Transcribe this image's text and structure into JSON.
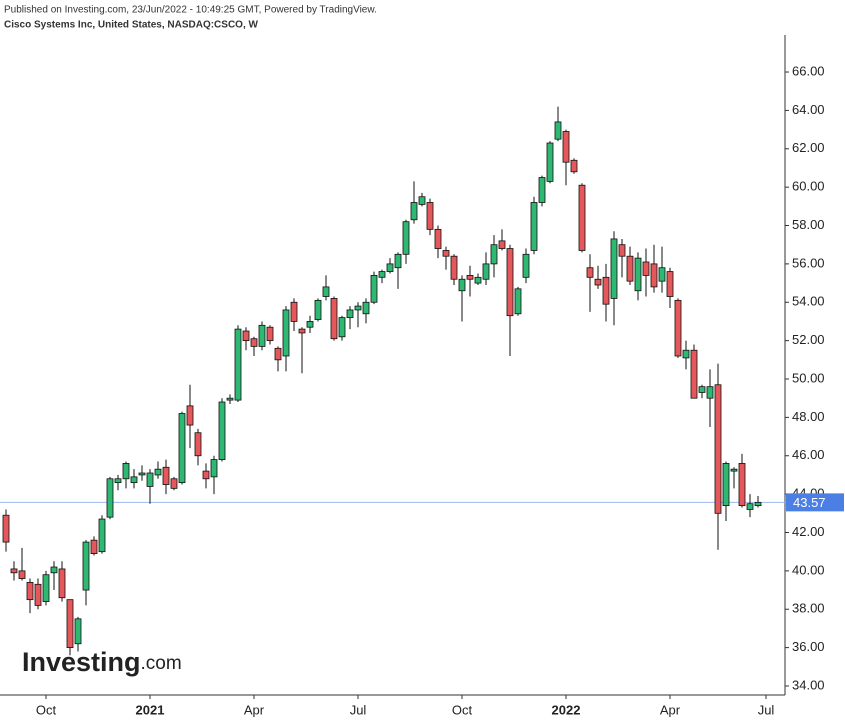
{
  "chart_data": {
    "type": "candlestick",
    "published": "Published on Investing.com, 23/Jun/2022 - 10:49:25 GMT, Powered by TradingView.",
    "title": "Cisco Systems Inc, United States, NASDAQ:CSCO, W",
    "logo_main": "Investing",
    "logo_suffix": ".com",
    "up_color": "#2fb872",
    "down_color": "#e4575a",
    "last_price": 43.57,
    "categories": [
      null,
      null,
      null,
      null,
      null,
      "Oct",
      null,
      null,
      null,
      null,
      null,
      null,
      null,
      null,
      null,
      null,
      null,
      null,
      "2021",
      null,
      null,
      null,
      null,
      null,
      null,
      null,
      null,
      null,
      null,
      null,
      null,
      "Apr",
      null,
      null,
      null,
      null,
      null,
      null,
      null,
      null,
      null,
      null,
      null,
      null,
      "Jul",
      null,
      null,
      null,
      null,
      null,
      null,
      null,
      null,
      null,
      null,
      null,
      null,
      "Oct",
      null,
      null,
      null,
      null,
      null,
      null,
      null,
      null,
      null,
      null,
      null,
      null,
      "2022",
      null,
      null,
      null,
      null,
      null,
      null,
      null,
      null,
      null,
      null,
      null,
      null,
      "Apr",
      null,
      null,
      null,
      null,
      null,
      null,
      null,
      null,
      null,
      null,
      null,
      "Jul"
    ],
    "open": [
      42.9,
      40.1,
      40.0,
      39.4,
      39.3,
      38.4,
      39.9,
      40.1,
      38.5,
      36.2,
      39.0,
      41.6,
      41.0,
      42.8,
      44.6,
      44.8,
      44.6,
      45.0,
      44.4,
      45.0,
      45.4,
      44.8,
      44.6,
      48.6,
      47.2,
      45.2,
      44.9,
      45.8,
      48.9,
      48.9,
      52.5,
      52.1,
      51.7,
      52.7,
      51.6,
      51.2,
      54.0,
      52.6,
      52.7,
      53.1,
      54.3,
      54.2,
      52.2,
      53.2,
      53.6,
      53.4,
      54.0,
      55.3,
      55.6,
      55.8,
      56.5,
      58.3,
      59.1,
      59.2,
      57.8,
      56.7,
      56.4,
      54.6,
      55.4,
      55.0,
      55.2,
      56.0,
      57.2,
      56.8,
      53.4,
      55.3,
      56.7,
      59.2,
      60.3,
      62.5,
      62.9,
      61.4,
      60.1,
      55.8,
      55.2,
      55.3,
      54.2,
      57.0,
      56.4,
      54.6,
      56.1,
      56.0,
      55.1,
      55.6,
      54.1,
      51.1,
      51.5,
      49.3,
      49.0,
      49.7,
      43.4,
      45.2,
      45.6,
      43.2,
      43.4,
      null
    ],
    "high": [
      43.2,
      40.5,
      41.2,
      39.6,
      39.6,
      40.0,
      40.5,
      40.5,
      38.5,
      37.6,
      41.6,
      41.8,
      42.9,
      44.9,
      45.0,
      45.7,
      45.3,
      45.5,
      45.3,
      45.7,
      45.8,
      44.9,
      48.3,
      49.7,
      47.4,
      45.6,
      46.0,
      49.0,
      49.2,
      52.8,
      52.7,
      52.2,
      53.0,
      52.8,
      51.7,
      53.8,
      54.2,
      52.7,
      53.3,
      54.2,
      55.4,
      54.3,
      53.3,
      53.8,
      54.0,
      54.2,
      55.6,
      55.7,
      56.3,
      56.6,
      58.3,
      60.3,
      59.7,
      59.4,
      58.0,
      56.9,
      56.5,
      55.4,
      55.9,
      55.5,
      56.6,
      57.5,
      57.8,
      57.0,
      54.8,
      56.8,
      59.5,
      60.6,
      62.4,
      64.2,
      63.0,
      61.5,
      60.2,
      56.5,
      55.9,
      56.0,
      57.7,
      57.3,
      56.9,
      56.6,
      56.8,
      57.0,
      56.9,
      55.8,
      54.2,
      52.0,
      51.8,
      49.7,
      50.5,
      50.8,
      45.7,
      45.4,
      46.1,
      44.0,
      43.9,
      null
    ],
    "low": [
      41.0,
      39.5,
      39.5,
      37.8,
      38.0,
      38.2,
      39.0,
      38.4,
      35.6,
      35.8,
      38.2,
      40.8,
      40.9,
      42.7,
      44.2,
      44.3,
      44.3,
      44.7,
      43.5,
      44.8,
      44.0,
      44.2,
      44.5,
      46.4,
      45.5,
      44.3,
      44.0,
      45.7,
      48.7,
      48.8,
      51.5,
      51.2,
      51.5,
      51.8,
      50.4,
      50.4,
      52.5,
      50.3,
      52.4,
      53.0,
      54.1,
      52.0,
      52.0,
      52.6,
      52.7,
      52.9,
      53.9,
      55.0,
      55.5,
      54.7,
      56.0,
      58.1,
      59.0,
      57.5,
      56.3,
      55.7,
      54.9,
      53.0,
      54.3,
      54.9,
      54.9,
      55.3,
      56.7,
      51.2,
      53.3,
      55.0,
      56.5,
      59.0,
      60.2,
      62.4,
      60.1,
      60.7,
      56.6,
      53.5,
      54.7,
      53.0,
      52.8,
      55.3,
      54.9,
      54.1,
      54.3,
      54.5,
      54.5,
      53.7,
      51.1,
      50.5,
      49.0,
      49.0,
      47.5,
      41.1,
      42.6,
      44.3,
      43.3,
      42.8,
      43.3,
      null
    ],
    "close": [
      41.5,
      39.9,
      39.6,
      38.5,
      38.2,
      39.8,
      40.2,
      38.6,
      36.0,
      37.5,
      41.5,
      40.9,
      42.7,
      44.8,
      44.8,
      45.6,
      44.9,
      45.1,
      45.1,
      45.3,
      44.5,
      44.3,
      48.2,
      47.6,
      46.0,
      44.8,
      45.8,
      48.8,
      49.0,
      52.6,
      52.0,
      51.7,
      52.8,
      52.0,
      51.0,
      53.6,
      53.0,
      52.4,
      53.0,
      54.1,
      54.8,
      52.1,
      53.2,
      53.6,
      53.8,
      54.0,
      55.4,
      55.6,
      56.0,
      56.5,
      58.2,
      59.2,
      59.5,
      57.8,
      56.8,
      56.4,
      55.2,
      55.2,
      55.2,
      55.3,
      56.0,
      57.0,
      56.8,
      53.3,
      54.7,
      56.5,
      59.2,
      60.5,
      62.3,
      63.4,
      61.3,
      60.8,
      56.7,
      55.3,
      54.9,
      53.9,
      57.3,
      56.4,
      55.1,
      56.3,
      55.4,
      54.8,
      55.8,
      54.3,
      51.2,
      51.5,
      49.0,
      49.6,
      49.6,
      43.0,
      45.6,
      45.3,
      43.4,
      43.5,
      43.57,
      null
    ],
    "ylim": [
      33.53,
      67.93
    ],
    "yticks": [
      {
        "value": 34,
        "label": "34.00"
      },
      {
        "value": 36,
        "label": "36.00"
      },
      {
        "value": 38,
        "label": "38.00"
      },
      {
        "value": 40,
        "label": "40.00"
      },
      {
        "value": 42,
        "label": "42.00"
      },
      {
        "value": 44,
        "label": "44.00"
      },
      {
        "value": 46,
        "label": "46.00"
      },
      {
        "value": 48,
        "label": "48.00"
      },
      {
        "value": 50,
        "label": "50.00"
      },
      {
        "value": 52,
        "label": "52.00"
      },
      {
        "value": 54,
        "label": "54.00"
      },
      {
        "value": 56,
        "label": "56.00"
      },
      {
        "value": 58,
        "label": "58.00"
      },
      {
        "value": 60,
        "label": "60.00"
      },
      {
        "value": 62,
        "label": "62.00"
      },
      {
        "value": 64,
        "label": "64.00"
      },
      {
        "value": 66,
        "label": "66.00"
      }
    ]
  }
}
